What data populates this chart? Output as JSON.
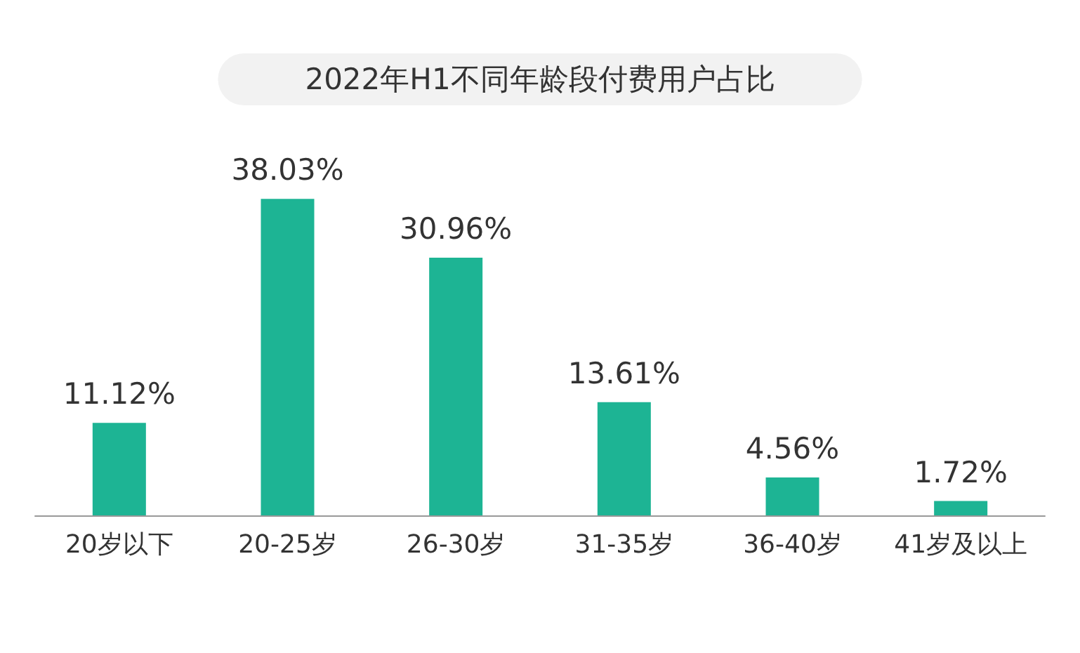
{
  "chart_data": {
    "type": "bar",
    "title": "2022年H1不同年龄段付费用户占比",
    "categories": [
      "20岁以下",
      "20-25岁",
      "26-30岁",
      "31-35岁",
      "36-40岁",
      "41岁及以上"
    ],
    "values": [
      11.12,
      38.03,
      30.96,
      13.61,
      4.56,
      1.72
    ],
    "value_labels": [
      "11.12%",
      "38.03%",
      "30.96%",
      "13.61%",
      "4.56%",
      "1.72%"
    ],
    "color": "#1db494"
  }
}
